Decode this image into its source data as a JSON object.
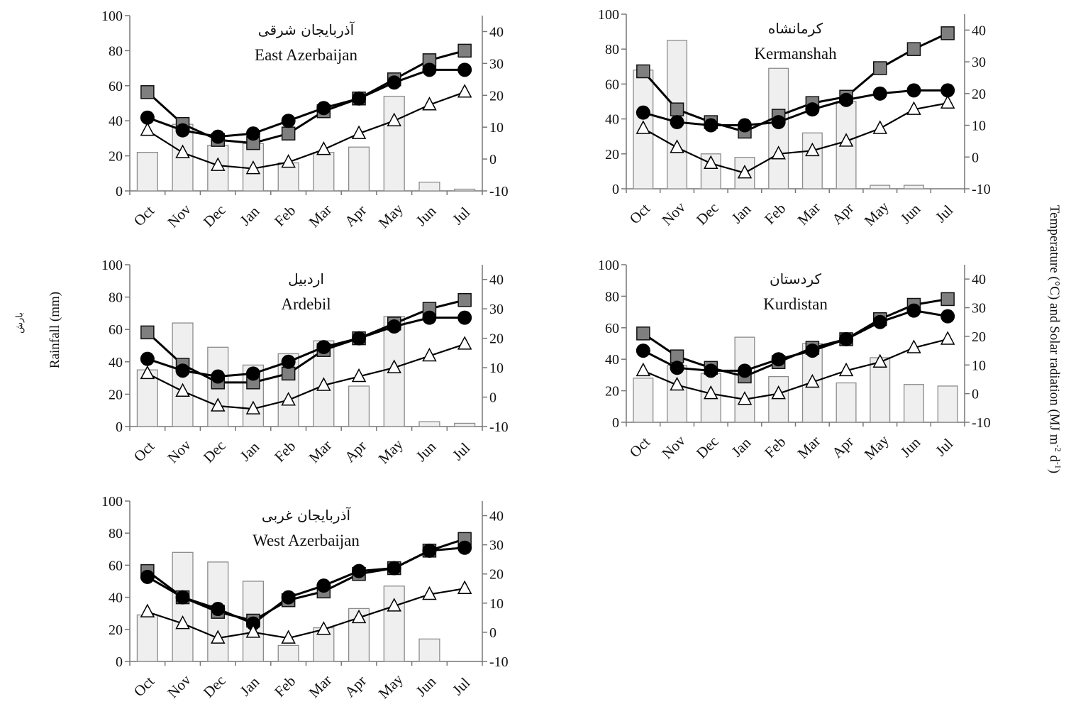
{
  "figure": {
    "left_axis_label": "Rainfall (mm)",
    "left_axis_label_fa": "بارش",
    "right_axis_label_main": "Temperature (°C) and Solar radiation (MJ m",
    "right_axis_label_sup1": "-2",
    "right_axis_label_mid": " d",
    "right_axis_label_sup2": "-1",
    "right_axis_label_end": ")"
  },
  "chart_data": [
    {
      "type": "bar+line",
      "title_fa": "آذربایجان شرقی",
      "title": "East Azerbaijan",
      "categories": [
        "Oct",
        "Nov",
        "Dec",
        "Jan",
        "Feb",
        "Mar",
        "Apr",
        "May",
        "Jun",
        "Jul"
      ],
      "ylim_left": [
        0,
        100
      ],
      "yticks_left": [
        0,
        20,
        40,
        60,
        80,
        100
      ],
      "ylim_right": [
        -10,
        45
      ],
      "yticks_right": [
        -10,
        0,
        10,
        20,
        30,
        40
      ],
      "rainfall": [
        22,
        38,
        26,
        27,
        16,
        22,
        25,
        54,
        5,
        1
      ],
      "series": [
        {
          "marker": "square",
          "values": [
            21,
            11,
            6,
            5,
            8,
            15,
            19,
            25,
            31,
            34
          ]
        },
        {
          "marker": "circle",
          "values": [
            13,
            9,
            7,
            8,
            12,
            16,
            19,
            24,
            28,
            28
          ]
        },
        {
          "marker": "triangle",
          "values": [
            9,
            2,
            -2,
            -3,
            -1,
            3,
            8,
            12,
            17,
            21
          ]
        }
      ]
    },
    {
      "type": "bar+line",
      "title_fa": "کرمانشاه",
      "title": "Kermanshah",
      "categories": [
        "Oct",
        "Nov",
        "Dec",
        "Jan",
        "Feb",
        "Mar",
        "Apr",
        "May",
        "Jun",
        "Jul"
      ],
      "ylim_left": [
        0,
        100
      ],
      "yticks_left": [
        0,
        20,
        40,
        60,
        80,
        100
      ],
      "ylim_right": [
        -10,
        45
      ],
      "yticks_right": [
        -10,
        0,
        10,
        20,
        30,
        40
      ],
      "rainfall": [
        68,
        85,
        20,
        18,
        69,
        32,
        50,
        2,
        2,
        0
      ],
      "series": [
        {
          "marker": "square",
          "values": [
            27,
            15,
            11,
            8,
            13,
            17,
            19,
            28,
            34,
            39
          ]
        },
        {
          "marker": "circle",
          "values": [
            14,
            11,
            10,
            10,
            11,
            15,
            18,
            20,
            21,
            21
          ]
        },
        {
          "marker": "triangle",
          "values": [
            9,
            3,
            -2,
            -5,
            1,
            2,
            5,
            9,
            15,
            17
          ]
        }
      ]
    },
    {
      "type": "bar+line",
      "title_fa": "اردبیل",
      "title": "Ardebil",
      "categories": [
        "Oct",
        "Nov",
        "Dec",
        "Jan",
        "Feb",
        "Mar",
        "Apr",
        "May",
        "Jun",
        "Jul"
      ],
      "ylim_left": [
        0,
        100
      ],
      "yticks_left": [
        0,
        20,
        40,
        60,
        80,
        100
      ],
      "ylim_right": [
        -10,
        45
      ],
      "yticks_right": [
        -10,
        0,
        10,
        20,
        30,
        40
      ],
      "rainfall": [
        35,
        64,
        49,
        38,
        45,
        53,
        25,
        68,
        3,
        2
      ],
      "series": [
        {
          "marker": "square",
          "values": [
            22,
            11,
            5,
            5,
            8,
            16,
            20,
            25,
            30,
            33
          ]
        },
        {
          "marker": "circle",
          "values": [
            13,
            9,
            7,
            8,
            12,
            17,
            20,
            24,
            27,
            27
          ]
        },
        {
          "marker": "triangle",
          "values": [
            8,
            2,
            -3,
            -4,
            -1,
            4,
            7,
            10,
            14,
            18
          ]
        }
      ]
    },
    {
      "type": "bar+line",
      "title_fa": "کردستان",
      "title": "Kurdistan",
      "categories": [
        "Oct",
        "Nov",
        "Dec",
        "Jan",
        "Feb",
        "Mar",
        "Apr",
        "May",
        "Jun",
        "Jul"
      ],
      "ylim_left": [
        0,
        100
      ],
      "yticks_left": [
        0,
        20,
        40,
        60,
        80,
        100
      ],
      "ylim_right": [
        -10,
        45
      ],
      "yticks_right": [
        -10,
        0,
        10,
        20,
        30,
        40
      ],
      "rainfall": [
        28,
        36,
        31,
        54,
        29,
        50,
        25,
        41,
        24,
        23
      ],
      "series": [
        {
          "marker": "square",
          "values": [
            21,
            13,
            9,
            6,
            11,
            16,
            19,
            26,
            31,
            33
          ]
        },
        {
          "marker": "circle",
          "values": [
            15,
            9,
            8,
            8,
            12,
            15,
            19,
            25,
            29,
            27
          ]
        },
        {
          "marker": "triangle",
          "values": [
            8,
            3,
            0,
            -2,
            0,
            4,
            8,
            11,
            16,
            19
          ]
        }
      ]
    },
    {
      "type": "bar+line",
      "title_fa": "آذربایجان غربی",
      "title": "West Azerbaijan",
      "categories": [
        "Oct",
        "Nov",
        "Dec",
        "Jan",
        "Feb",
        "Mar",
        "Apr",
        "May",
        "Jun",
        "Jul"
      ],
      "ylim_left": [
        0,
        100
      ],
      "yticks_left": [
        0,
        20,
        40,
        60,
        80,
        100
      ],
      "ylim_right": [
        -10,
        45
      ],
      "yticks_right": [
        -10,
        0,
        10,
        20,
        30,
        40
      ],
      "rainfall": [
        29,
        68,
        62,
        50,
        10,
        21,
        33,
        47,
        14,
        0
      ],
      "series": [
        {
          "marker": "square",
          "values": [
            21,
            12,
            7,
            4,
            11,
            14,
            20,
            22,
            28,
            32
          ]
        },
        {
          "marker": "circle",
          "values": [
            19,
            12,
            8,
            3,
            12,
            16,
            21,
            22,
            28,
            29
          ]
        },
        {
          "marker": "triangle",
          "values": [
            7,
            3,
            -2,
            0,
            -2,
            1,
            5,
            9,
            13,
            15
          ]
        }
      ]
    }
  ]
}
